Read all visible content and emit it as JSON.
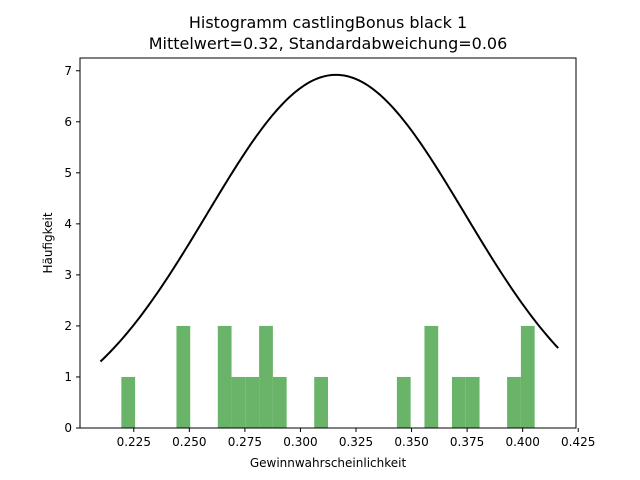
{
  "chart_data": {
    "type": "bar",
    "title": "Histogramm castlingBonus black 1",
    "subtitle": "Mittelwert=0.32, Standardabweichung=0.06",
    "xlabel": "Gewinnwahrscheinlichkeit",
    "ylabel": "Häufigkeit",
    "xlim": [
      0.2008,
      0.424
    ],
    "ylim": [
      0,
      7.25
    ],
    "xticks": [
      0.225,
      0.25,
      0.275,
      0.3,
      0.325,
      0.35,
      0.375,
      0.4,
      0.425
    ],
    "xtick_labels": [
      "0.225",
      "0.250",
      "0.275",
      "0.300",
      "0.325",
      "0.350",
      "0.375",
      "0.400",
      "0.425"
    ],
    "yticks": [
      0,
      1,
      2,
      3,
      4,
      5,
      6,
      7
    ],
    "ytick_labels": [
      "0",
      "1",
      "2",
      "3",
      "4",
      "5",
      "6",
      "7"
    ],
    "bar_color": "#6ab46a",
    "bins": [
      {
        "x0": 0.2194,
        "x1": 0.2256,
        "count": 1
      },
      {
        "x0": 0.2442,
        "x1": 0.2504,
        "count": 2
      },
      {
        "x0": 0.2628,
        "x1": 0.269,
        "count": 2
      },
      {
        "x0": 0.269,
        "x1": 0.2752,
        "count": 1
      },
      {
        "x0": 0.2752,
        "x1": 0.2814,
        "count": 1
      },
      {
        "x0": 0.2814,
        "x1": 0.2876,
        "count": 2
      },
      {
        "x0": 0.2876,
        "x1": 0.2938,
        "count": 1
      },
      {
        "x0": 0.3062,
        "x1": 0.3124,
        "count": 1
      },
      {
        "x0": 0.3434,
        "x1": 0.3496,
        "count": 1
      },
      {
        "x0": 0.3558,
        "x1": 0.362,
        "count": 2
      },
      {
        "x0": 0.3682,
        "x1": 0.3744,
        "count": 1
      },
      {
        "x0": 0.3744,
        "x1": 0.3806,
        "count": 1
      },
      {
        "x0": 0.393,
        "x1": 0.3992,
        "count": 1
      },
      {
        "x0": 0.3992,
        "x1": 0.4054,
        "count": 2
      }
    ],
    "curve": {
      "type": "normal_pdf",
      "color": "#000000",
      "mean": 0.316,
      "std": 0.058,
      "peak": 6.92,
      "x_range": [
        0.21,
        0.416
      ]
    },
    "grid": false
  }
}
